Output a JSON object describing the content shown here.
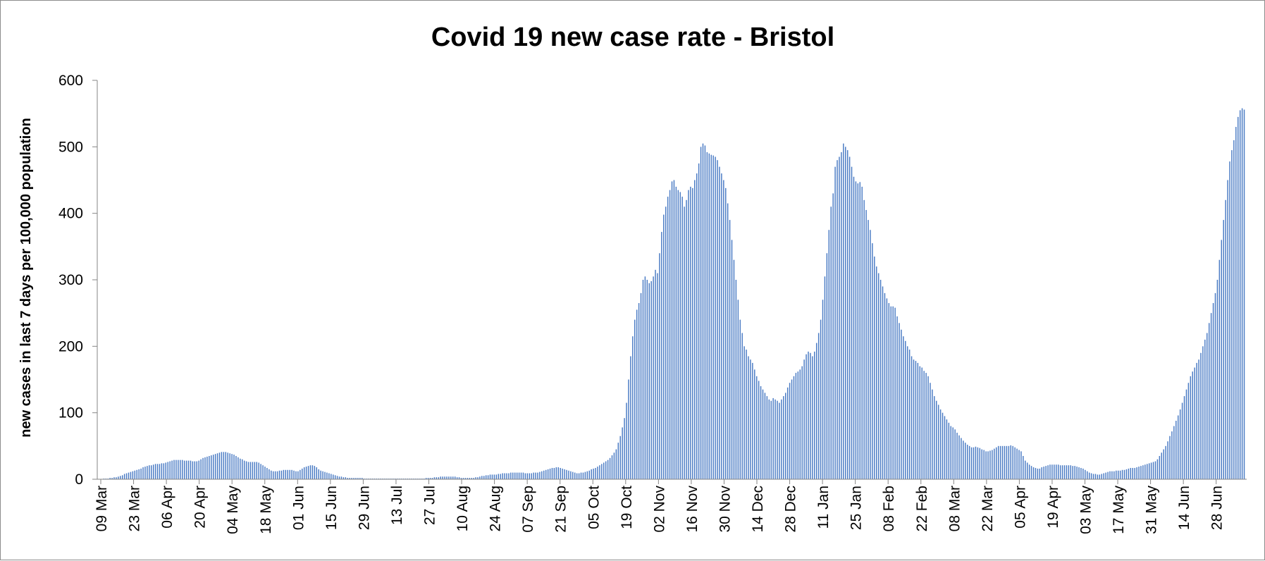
{
  "chart_data": {
    "type": "bar",
    "title": "Covid 19 new case rate - Bristol",
    "xlabel": "",
    "ylabel": "new cases in last 7 days per 100,000 population",
    "ylim": [
      0,
      600
    ],
    "yticks": [
      "0",
      "100",
      "200",
      "300",
      "400",
      "500",
      "600"
    ],
    "xticks": [
      "09 Mar",
      "23 Mar",
      "06 Apr",
      "20 Apr",
      "04 May",
      "18 May",
      "01 Jun",
      "15 Jun",
      "29 Jun",
      "13 Jul",
      "27 Jul",
      "10 Aug",
      "24 Aug",
      "07 Sep",
      "21 Sep",
      "05 Oct",
      "19 Oct",
      "02 Nov",
      "16 Nov",
      "30 Nov",
      "14 Dec",
      "28 Dec",
      "11 Jan",
      "25 Jan",
      "08 Feb",
      "22 Feb",
      "08 Mar",
      "22 Mar",
      "05 Apr",
      "19 Apr",
      "03 May",
      "17 May",
      "31 May",
      "14 Jun",
      "28 Jun"
    ],
    "grid": false,
    "legend": "none",
    "bar_color": "#4a7bc4",
    "series": [
      {
        "values": [
          0,
          0,
          1,
          1,
          1,
          2,
          2,
          3,
          3,
          4,
          5,
          6,
          8,
          9,
          10,
          11,
          12,
          13,
          14,
          15,
          16,
          18,
          19,
          20,
          21,
          21,
          22,
          23,
          23,
          23,
          24,
          24,
          25,
          26,
          27,
          28,
          29,
          29,
          29,
          29,
          29,
          28,
          28,
          28,
          28,
          27,
          27,
          27,
          28,
          30,
          32,
          33,
          34,
          35,
          36,
          37,
          38,
          39,
          40,
          41,
          41,
          41,
          40,
          39,
          38,
          37,
          35,
          33,
          31,
          30,
          28,
          27,
          26,
          26,
          26,
          26,
          26,
          25,
          23,
          21,
          19,
          17,
          15,
          13,
          12,
          12,
          12,
          13,
          13,
          14,
          14,
          14,
          14,
          14,
          13,
          12,
          12,
          14,
          16,
          18,
          19,
          20,
          21,
          21,
          20,
          18,
          15,
          13,
          12,
          11,
          10,
          9,
          8,
          7,
          6,
          5,
          4,
          4,
          3,
          3,
          2,
          2,
          2,
          2,
          2,
          2,
          2,
          2,
          1,
          1,
          1,
          1,
          1,
          1,
          1,
          1,
          1,
          1,
          1,
          1,
          1,
          1,
          1,
          1,
          1,
          1,
          1,
          1,
          1,
          1,
          1,
          1,
          1,
          1,
          1,
          1,
          1,
          1,
          2,
          2,
          2,
          2,
          3,
          3,
          3,
          4,
          4,
          4,
          4,
          4,
          4,
          4,
          4,
          3,
          3,
          2,
          2,
          2,
          2,
          2,
          2,
          2,
          3,
          3,
          4,
          5,
          5,
          6,
          6,
          7,
          7,
          7,
          7,
          8,
          8,
          9,
          9,
          9,
          9,
          10,
          10,
          10,
          10,
          10,
          10,
          10,
          9,
          9,
          9,
          9,
          10,
          10,
          10,
          11,
          12,
          13,
          14,
          15,
          16,
          17,
          17,
          18,
          18,
          17,
          16,
          15,
          14,
          13,
          12,
          11,
          10,
          9,
          9,
          10,
          10,
          11,
          12,
          13,
          15,
          16,
          17,
          19,
          21,
          23,
          25,
          27,
          29,
          32,
          36,
          40,
          45,
          55,
          65,
          78,
          92,
          115,
          150,
          185,
          215,
          240,
          255,
          265,
          280,
          300,
          305,
          300,
          295,
          298,
          305,
          315,
          310,
          340,
          372,
          398,
          410,
          425,
          435,
          448,
          450,
          440,
          435,
          432,
          425,
          410,
          420,
          435,
          440,
          438,
          450,
          460,
          475,
          500,
          505,
          502,
          492,
          490,
          488,
          487,
          485,
          480,
          470,
          460,
          450,
          438,
          415,
          390,
          360,
          330,
          300,
          270,
          240,
          220,
          200,
          195,
          185,
          180,
          175,
          165,
          155,
          148,
          140,
          135,
          130,
          125,
          120,
          118,
          122,
          120,
          118,
          115,
          120,
          125,
          130,
          138,
          145,
          150,
          155,
          160,
          162,
          165,
          170,
          180,
          188,
          192,
          190,
          185,
          192,
          205,
          220,
          240,
          270,
          305,
          340,
          375,
          410,
          430,
          470,
          480,
          485,
          492,
          505,
          500,
          495,
          485,
          470,
          455,
          448,
          445,
          447,
          440,
          420,
          405,
          390,
          375,
          355,
          335,
          320,
          310,
          300,
          290,
          280,
          272,
          265,
          260,
          260,
          258,
          245,
          235,
          225,
          215,
          208,
          200,
          195,
          185,
          180,
          178,
          175,
          170,
          168,
          163,
          160,
          155,
          145,
          135,
          125,
          118,
          112,
          105,
          100,
          95,
          90,
          85,
          80,
          78,
          75,
          70,
          66,
          62,
          58,
          55,
          52,
          50,
          48,
          48,
          49,
          48,
          47,
          45,
          44,
          42,
          42,
          43,
          44,
          46,
          48,
          50,
          50,
          50,
          50,
          50,
          50,
          51,
          50,
          48,
          46,
          44,
          42,
          35,
          28,
          25,
          22,
          20,
          18,
          17,
          16,
          16,
          18,
          19,
          20,
          21,
          22,
          22,
          22,
          22,
          22,
          21,
          21,
          21,
          21,
          21,
          21,
          20,
          20,
          19,
          18,
          17,
          16,
          14,
          12,
          10,
          9,
          8,
          8,
          7,
          7,
          8,
          9,
          10,
          11,
          12,
          12,
          12,
          13,
          13,
          13,
          14,
          14,
          15,
          16,
          17,
          17,
          17,
          18,
          19,
          20,
          21,
          22,
          23,
          24,
          25,
          26,
          27,
          30,
          35,
          40,
          45,
          50,
          57,
          65,
          72,
          80,
          88,
          96,
          105,
          115,
          125,
          135,
          145,
          155,
          162,
          168,
          175,
          180,
          190,
          200,
          210,
          220,
          235,
          250,
          265,
          280,
          300,
          330,
          360,
          390,
          420,
          450,
          478,
          495,
          510,
          530,
          545,
          555,
          558,
          556
        ]
      }
    ]
  }
}
